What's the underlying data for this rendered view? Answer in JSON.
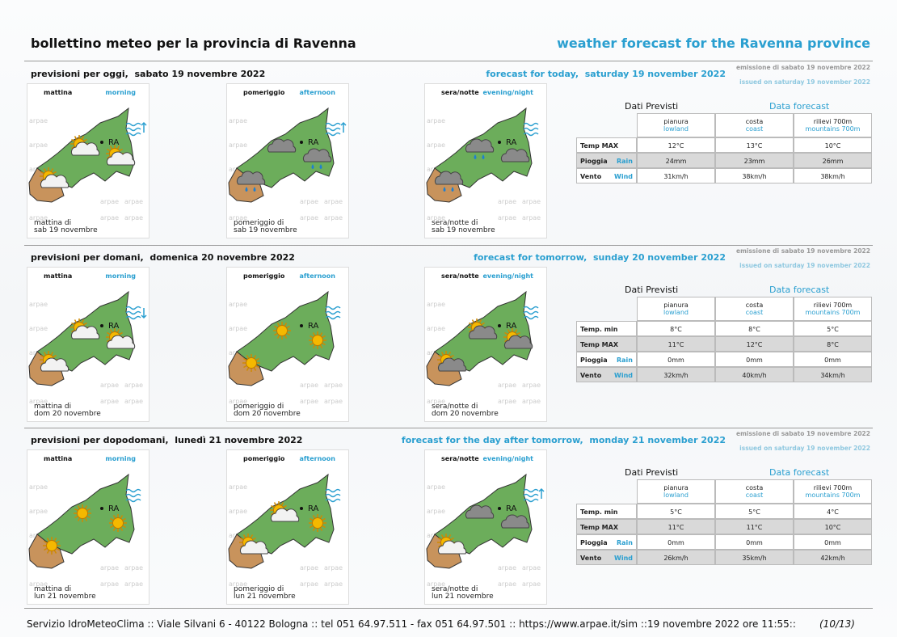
{
  "header": {
    "title": "bollettino meteo per la provincia di Ravenna",
    "title_en": "weather forecast for the Ravenna province"
  },
  "map_labels": {
    "city": "RA",
    "watermark": "arpae"
  },
  "days": [
    {
      "title": "previsioni per oggi,  sabato 19 novembre 2022",
      "title_en": "forecast for today,  saturday 19 november 2022",
      "issued": "emissione di sabato 19 novembre 2022",
      "issued_en": "issued on saturday 19 november 2022",
      "panels": [
        {
          "label": "mattina",
          "label_en": "morning",
          "caption": [
            "mattina di",
            "sab 19 novembre"
          ]
        },
        {
          "label": "pomeriggio",
          "label_en": "afternoon",
          "caption": [
            "pomeriggio di",
            "sab 19 novembre"
          ]
        },
        {
          "label": "sera/notte",
          "label_en": "evening/night",
          "caption": [
            "sera/notte di",
            "sab 19 novembre"
          ]
        }
      ],
      "table": {
        "title": "Dati Previsti",
        "title_en": "Data forecast",
        "columns": [
          {
            "label": "pianura",
            "label_en": "lowland"
          },
          {
            "label": "costa",
            "label_en": "coast"
          },
          {
            "label": "rilievi 700m",
            "label_en": "mountains 700m"
          }
        ],
        "rows": [
          {
            "label": "Temp MAX",
            "cells": [
              "12°C",
              "13°C",
              "10°C"
            ]
          },
          {
            "label": "Pioggia",
            "label_en": "Rain",
            "cells": [
              "24mm",
              "23mm",
              "26mm"
            ]
          },
          {
            "label": "Vento",
            "label_en": "Wind",
            "cells": [
              "31km/h",
              "38km/h",
              "38km/h"
            ]
          }
        ]
      }
    },
    {
      "title": "previsioni per domani,  domenica 20 novembre 2022",
      "title_en": "forecast for tomorrow,  sunday 20 november 2022",
      "issued": "emissione di sabato 19 novembre 2022",
      "issued_en": "issued on saturday 19 november 2022",
      "panels": [
        {
          "label": "mattina",
          "label_en": "morning",
          "caption": [
            "mattina di",
            "dom 20 novembre"
          ]
        },
        {
          "label": "pomeriggio",
          "label_en": "afternoon",
          "caption": [
            "pomeriggio di",
            "dom 20 novembre"
          ]
        },
        {
          "label": "sera/notte",
          "label_en": "evening/night",
          "caption": [
            "sera/notte di",
            "dom 20 novembre"
          ]
        }
      ],
      "table": {
        "title": "Dati Previsti",
        "title_en": "Data forecast",
        "columns": [
          {
            "label": "pianura",
            "label_en": "lowland"
          },
          {
            "label": "costa",
            "label_en": "coast"
          },
          {
            "label": "rilievi 700m",
            "label_en": "mountains 700m"
          }
        ],
        "rows": [
          {
            "label": "Temp. min",
            "cells": [
              "8°C",
              "8°C",
              "5°C"
            ]
          },
          {
            "label": "Temp MAX",
            "cells": [
              "11°C",
              "12°C",
              "8°C"
            ]
          },
          {
            "label": "Pioggia",
            "label_en": "Rain",
            "cells": [
              "0mm",
              "0mm",
              "0mm"
            ]
          },
          {
            "label": "Vento",
            "label_en": "Wind",
            "cells": [
              "32km/h",
              "40km/h",
              "34km/h"
            ]
          }
        ]
      }
    },
    {
      "title": "previsioni per dopodomani,  lunedì 21 novembre 2022",
      "title_en": "forecast for the day after tomorrow,  monday 21 november 2022",
      "issued": "emissione di sabato 19 novembre 2022",
      "issued_en": "issued on saturday 19 november 2022",
      "panels": [
        {
          "label": "mattina",
          "label_en": "morning",
          "caption": [
            "mattina di",
            "lun 21 novembre"
          ]
        },
        {
          "label": "pomeriggio",
          "label_en": "afternoon",
          "caption": [
            "pomeriggio di",
            "lun 21 novembre"
          ]
        },
        {
          "label": "sera/notte",
          "label_en": "evening/night",
          "caption": [
            "sera/notte di",
            "lun 21 novembre"
          ]
        }
      ],
      "table": {
        "title": "Dati Previsti",
        "title_en": "Data forecast",
        "columns": [
          {
            "label": "pianura",
            "label_en": "lowland"
          },
          {
            "label": "costa",
            "label_en": "coast"
          },
          {
            "label": "rilievi 700m",
            "label_en": "mountains 700m"
          }
        ],
        "rows": [
          {
            "label": "Temp. min",
            "cells": [
              "5°C",
              "5°C",
              "4°C"
            ]
          },
          {
            "label": "Temp MAX",
            "cells": [
              "11°C",
              "11°C",
              "10°C"
            ]
          },
          {
            "label": "Pioggia",
            "label_en": "Rain",
            "cells": [
              "0mm",
              "0mm",
              "0mm"
            ]
          },
          {
            "label": "Vento",
            "label_en": "Wind",
            "cells": [
              "26km/h",
              "35km/h",
              "42km/h"
            ]
          }
        ]
      }
    }
  ],
  "footer": {
    "text": "Servizio IdroMeteoClima :: Viale Silvani 6 - 40122 Bologna :: tel 051 64.97.511 - fax 051 64.97.501 :: https://www.arpae.it/sim ::19 novembre 2022 ore 11:55::",
    "page": "(10/13)"
  }
}
